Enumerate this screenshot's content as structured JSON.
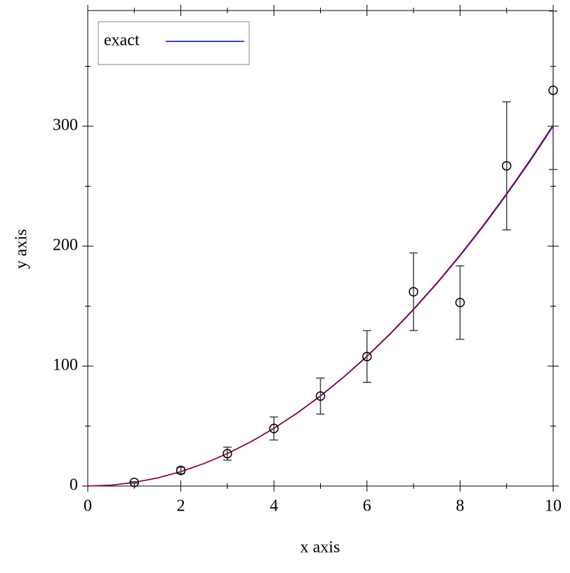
{
  "chart_data": {
    "type": "line",
    "xlabel": "x axis",
    "ylabel": "y axis",
    "xlim": [
      0,
      10
    ],
    "ylim": [
      0,
      396.5
    ],
    "xticks": [
      0,
      2,
      4,
      6,
      8,
      10
    ],
    "yticks": [
      0,
      100,
      200,
      300
    ],
    "xminorticks": [
      1,
      3,
      5,
      7,
      9
    ],
    "yminorticks": [
      50,
      150,
      250,
      350
    ],
    "legend": "top-left",
    "series": [
      {
        "name": "exact",
        "kind": "line",
        "color": "#0000ff",
        "x": [
          0,
          0.5,
          1,
          1.5,
          2,
          2.5,
          3,
          3.5,
          4,
          4.5,
          5,
          5.5,
          6,
          6.5,
          7,
          7.5,
          8,
          8.5,
          9,
          9.5,
          10
        ],
        "values": [
          0,
          0.75,
          3,
          6.75,
          12,
          18.75,
          27,
          36.75,
          48,
          60.75,
          75,
          90.75,
          108,
          126.75,
          147,
          168.75,
          192,
          216.75,
          243,
          270.75,
          300
        ]
      },
      {
        "kind": "line",
        "color": "#a00020",
        "x": [
          0,
          0.5,
          1,
          1.5,
          2,
          2.5,
          3,
          3.5,
          4,
          4.5,
          5,
          5.5,
          6,
          6.5,
          7,
          7.5,
          8,
          8.5,
          9,
          9.5,
          10
        ],
        "values": [
          0,
          0.7525,
          3.01,
          6.7725,
          12.04,
          18.8125,
          27.09,
          36.8725,
          48.16,
          60.9525,
          75.25,
          91.0525,
          108.36,
          127.1725,
          147.49,
          169.3125,
          192.64,
          217.4725,
          243.81,
          271.6525,
          301
        ]
      },
      {
        "kind": "points",
        "color": "#000000",
        "x": [
          1,
          2,
          3,
          4,
          5,
          6,
          7,
          8,
          9,
          10
        ],
        "values": [
          3,
          13,
          27,
          48,
          75,
          108,
          162,
          153,
          267,
          330
        ],
        "errors": [
          0.6,
          2.6,
          5.4,
          9.6,
          15,
          21.6,
          32.4,
          30.6,
          53.4,
          66
        ]
      }
    ]
  }
}
